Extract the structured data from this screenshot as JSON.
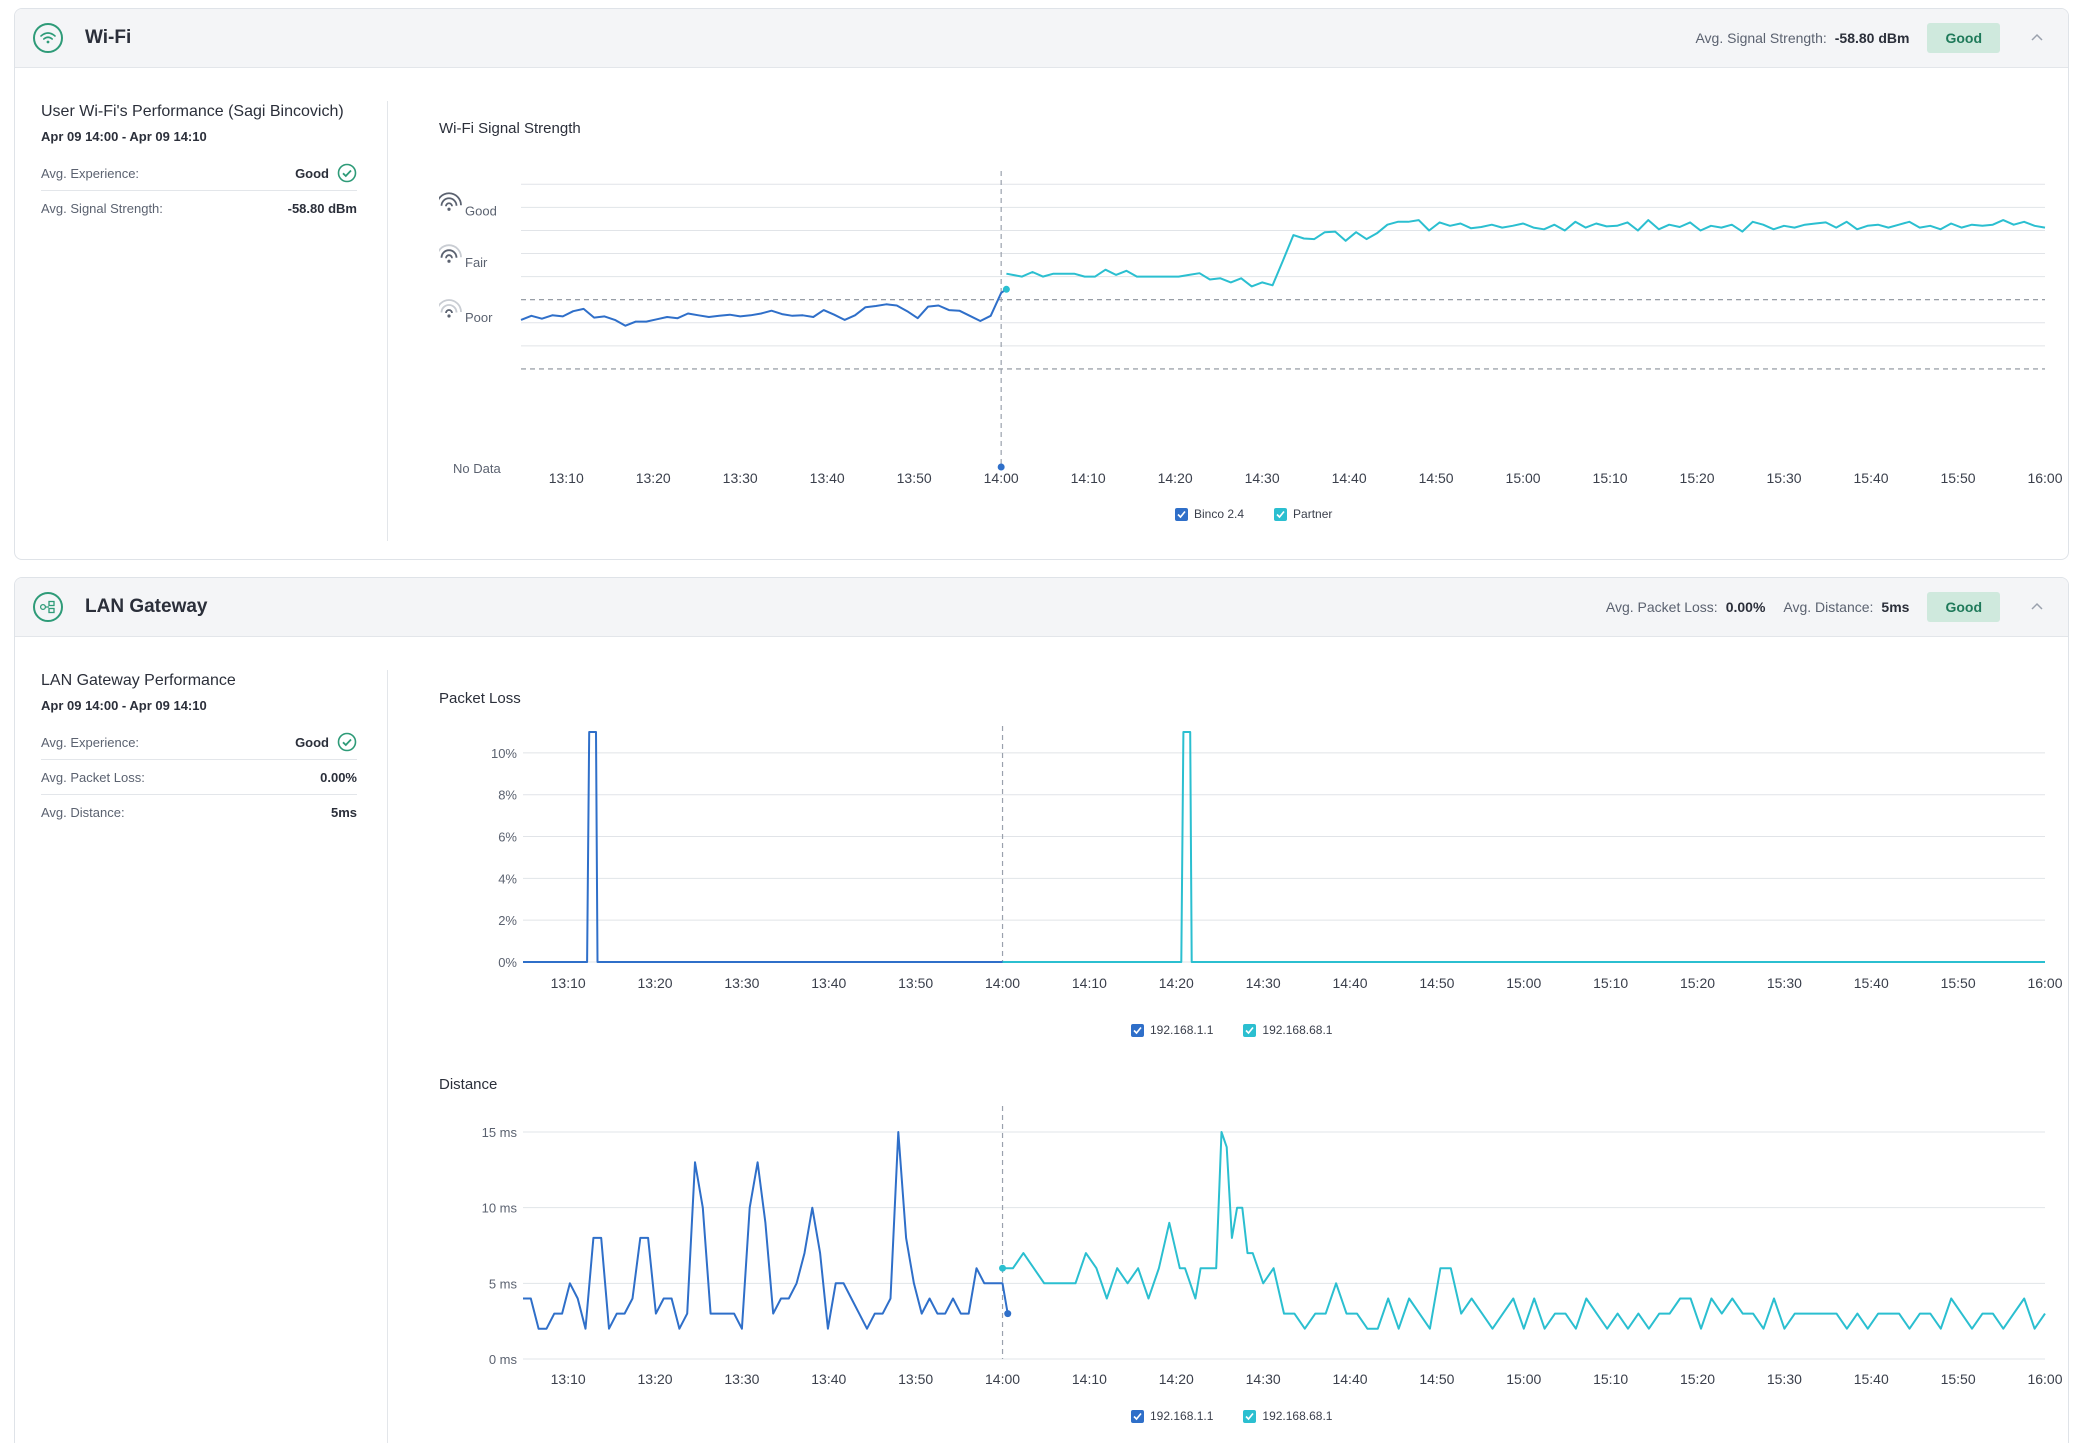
{
  "wifi": {
    "title": "Wi-Fi",
    "header_stat_label": "Avg. Signal Strength:",
    "header_stat_value": "-58.80 dBm",
    "badge": "Good",
    "summary": {
      "title": "User Wi-Fi's Performance (Sagi Bincovich)",
      "range": "Apr 09 14:00 - Apr 09 14:10",
      "rows": [
        {
          "label": "Avg. Experience:",
          "value": "Good"
        },
        {
          "label": "Avg. Signal Strength:",
          "value": "-58.80 dBm"
        }
      ]
    }
  },
  "lan": {
    "title": "LAN Gateway",
    "header_stats": [
      {
        "label": "Avg. Packet Loss:",
        "value": "0.00%"
      },
      {
        "label": "Avg. Distance:",
        "value": "5ms"
      }
    ],
    "badge": "Good",
    "summary": {
      "title": "LAN Gateway Performance",
      "range": "Apr 09 14:00 - Apr 09 14:10",
      "rows": [
        {
          "label": "Avg. Experience:",
          "value": "Good"
        },
        {
          "label": "Avg. Packet Loss:",
          "value": "0.00%"
        },
        {
          "label": "Avg. Distance:",
          "value": "5ms"
        }
      ]
    }
  },
  "colors": {
    "series1": "#2f6fc9",
    "series2": "#2bbfd0",
    "good": "#2e9b78"
  },
  "time_labels": [
    "13:10",
    "13:20",
    "13:30",
    "13:40",
    "13:50",
    "14:00",
    "14:10",
    "14:20",
    "14:30",
    "14:40",
    "14:50",
    "15:00",
    "15:10",
    "15:20",
    "15:30",
    "15:40",
    "15:50",
    "16:00"
  ],
  "chart_data": [
    {
      "type": "line",
      "title": "Wi-Fi Signal Strength",
      "x_labels": [
        "13:10",
        "13:20",
        "13:30",
        "13:40",
        "13:50",
        "14:00",
        "14:10",
        "14:20",
        "14:30",
        "14:40",
        "14:50",
        "15:00",
        "15:10",
        "15:20",
        "15:30",
        "15:40",
        "15:50",
        "16:00"
      ],
      "y_labels": [
        "Good",
        "Fair",
        "Poor",
        "No Data"
      ],
      "xlim": [
        13.08,
        16.0
      ],
      "ylim": [
        0,
        5.2
      ],
      "marker_time": "14:00",
      "legend": [
        "Binco 2.4",
        "Partner"
      ],
      "series": [
        {
          "name": "Partner",
          "x": [
            13.08,
            13.1,
            13.12,
            13.14,
            13.16,
            13.18,
            13.2,
            13.22,
            13.24,
            13.26,
            13.28,
            13.3,
            13.32,
            13.34,
            13.36,
            13.38,
            13.4,
            13.42,
            13.44,
            13.46,
            13.48,
            13.5,
            13.52,
            13.54,
            13.56,
            13.58,
            13.6,
            13.62,
            13.64,
            13.66,
            13.68,
            13.7,
            13.72,
            13.74,
            13.76,
            13.78,
            13.8,
            13.82,
            13.84,
            13.86,
            13.88,
            13.9,
            13.92,
            13.94,
            13.96,
            13.98,
            14.0,
            14.01
          ],
          "values": [
            2.55,
            2.62,
            2.57,
            2.63,
            2.61,
            2.7,
            2.74,
            2.59,
            2.61,
            2.55,
            2.45,
            2.52,
            2.52,
            2.56,
            2.6,
            2.58,
            2.66,
            2.63,
            2.6,
            2.62,
            2.64,
            2.61,
            2.63,
            2.66,
            2.71,
            2.65,
            2.62,
            2.63,
            2.6,
            2.72,
            2.64,
            2.55,
            2.63,
            2.77,
            2.79,
            2.82,
            2.8,
            2.7,
            2.58,
            2.78,
            2.8,
            2.72,
            2.71,
            2.62,
            2.53,
            2.62,
            3.02,
            3.08
          ]
        },
        {
          "name": "Binco 2.4",
          "x": [
            14.01,
            14.04,
            14.06,
            14.08,
            14.1,
            14.12,
            14.14,
            14.16,
            14.18,
            14.2,
            14.22,
            14.24,
            14.26,
            14.28,
            14.3,
            14.32,
            14.34,
            14.36,
            14.38,
            14.4,
            14.42,
            14.44,
            14.46,
            14.48,
            14.5,
            14.52,
            14.54,
            14.56,
            14.58,
            14.6,
            14.62,
            14.64,
            14.66,
            14.68,
            14.7,
            14.72,
            14.74,
            14.76,
            14.78,
            14.8,
            14.82,
            14.84,
            14.86,
            14.88,
            14.9,
            14.92,
            14.94,
            14.96,
            14.98,
            15.0,
            15.02,
            15.04,
            15.06,
            15.08,
            15.1,
            15.12,
            15.14,
            15.16,
            15.18,
            15.2,
            15.22,
            15.24,
            15.26,
            15.28,
            15.3,
            15.32,
            15.34,
            15.36,
            15.38,
            15.4,
            15.42,
            15.44,
            15.46,
            15.48,
            15.5,
            15.52,
            15.54,
            15.56,
            15.58,
            15.6,
            15.62,
            15.64,
            15.66,
            15.68,
            15.7,
            15.72,
            15.74,
            15.76,
            15.78,
            15.8,
            15.82,
            15.84,
            15.86,
            15.88,
            15.9,
            15.92,
            15.94,
            15.96,
            15.98,
            16.0
          ],
          "values": [
            3.35,
            3.3,
            3.38,
            3.3,
            3.35,
            3.35,
            3.35,
            3.3,
            3.3,
            3.42,
            3.33,
            3.4,
            3.3,
            3.3,
            3.3,
            3.3,
            3.3,
            3.33,
            3.36,
            3.25,
            3.27,
            3.2,
            3.27,
            3.13,
            3.2,
            3.15,
            3.58,
            4.02,
            3.96,
            3.95,
            4.07,
            4.08,
            3.92,
            4.07,
            3.95,
            4.05,
            4.2,
            4.25,
            4.25,
            4.28,
            4.1,
            4.24,
            4.18,
            4.22,
            4.14,
            4.16,
            4.2,
            4.15,
            4.18,
            4.22,
            4.15,
            4.12,
            4.2,
            4.1,
            4.25,
            4.15,
            4.22,
            4.17,
            4.18,
            4.24,
            4.1,
            4.28,
            4.12,
            4.2,
            4.16,
            4.24,
            4.1,
            4.18,
            4.15,
            4.2,
            4.08,
            4.25,
            4.2,
            4.12,
            4.18,
            4.15,
            4.2,
            4.22,
            4.24,
            4.15,
            4.25,
            4.12,
            4.18,
            4.2,
            4.15,
            4.2,
            4.25,
            4.15,
            4.18,
            4.12,
            4.22,
            4.15,
            4.2,
            4.18,
            4.2,
            4.28,
            4.2,
            4.25,
            4.18,
            4.15
          ]
        }
      ]
    },
    {
      "type": "line",
      "title": "Packet Loss",
      "x_labels": [
        "13:10",
        "13:20",
        "13:30",
        "13:40",
        "13:50",
        "14:00",
        "14:10",
        "14:20",
        "14:30",
        "14:40",
        "14:50",
        "15:00",
        "15:10",
        "15:20",
        "15:30",
        "15:40",
        "15:50",
        "16:00"
      ],
      "y_labels": [
        "10%",
        "8%",
        "6%",
        "4%",
        "2%",
        "0%"
      ],
      "y_ticks": [
        10,
        8,
        6,
        4,
        2,
        0
      ],
      "xlim": [
        13.08,
        16.0
      ],
      "ylim": [
        0,
        11
      ],
      "marker_time": "14:00",
      "legend": [
        "192.168.1.1",
        "192.168.68.1"
      ],
      "series": [
        {
          "name": "192.168.1.1",
          "x": [
            13.08,
            13.203,
            13.207,
            13.22,
            13.223,
            14.0
          ],
          "values": [
            0,
            0,
            11,
            11,
            0,
            0
          ]
        },
        {
          "name": "192.168.68.1",
          "x": [
            14.0,
            14.343,
            14.347,
            14.36,
            14.363,
            16.0
          ],
          "values": [
            0,
            0,
            11,
            11,
            0,
            0
          ]
        }
      ]
    },
    {
      "type": "line",
      "title": "Distance",
      "x_labels": [
        "13:10",
        "13:20",
        "13:30",
        "13:40",
        "13:50",
        "14:00",
        "14:10",
        "14:20",
        "14:30",
        "14:40",
        "14:50",
        "15:00",
        "15:10",
        "15:20",
        "15:30",
        "15:40",
        "15:50",
        "16:00"
      ],
      "y_labels": [
        "15 ms",
        "10 ms",
        "5 ms",
        "0 ms"
      ],
      "y_ticks": [
        15,
        10,
        5,
        0
      ],
      "xlim": [
        13.08,
        16.0
      ],
      "ylim": [
        0,
        15
      ],
      "marker_time": "14:00",
      "legend": [
        "192.168.1.1",
        "192.168.68.1"
      ],
      "series": [
        {
          "name": "192.168.1.1",
          "x": [
            13.08,
            13.095,
            13.11,
            13.125,
            13.14,
            13.155,
            13.17,
            13.185,
            13.2,
            13.215,
            13.23,
            13.245,
            13.26,
            13.275,
            13.29,
            13.305,
            13.32,
            13.335,
            13.35,
            13.365,
            13.38,
            13.395,
            13.41,
            13.425,
            13.44,
            13.455,
            13.47,
            13.485,
            13.5,
            13.515,
            13.53,
            13.545,
            13.56,
            13.575,
            13.59,
            13.605,
            13.62,
            13.635,
            13.65,
            13.665,
            13.68,
            13.695,
            13.71,
            13.725,
            13.74,
            13.755,
            13.77,
            13.785,
            13.8,
            13.815,
            13.83,
            13.845,
            13.86,
            13.875,
            13.89,
            13.905,
            13.92,
            13.935,
            13.95,
            13.965,
            13.98,
            14.0,
            14.01
          ],
          "values": [
            4,
            4,
            2,
            2,
            3,
            3,
            5,
            4,
            2,
            8,
            8,
            2,
            3,
            3,
            4,
            8,
            8,
            3,
            4,
            4,
            2,
            3,
            13,
            10,
            3,
            3,
            3,
            3,
            2,
            10,
            13,
            9,
            3,
            4,
            4,
            5,
            7,
            10,
            7,
            2,
            5,
            5,
            4,
            3,
            2,
            3,
            3,
            4,
            15,
            8,
            5,
            3,
            4,
            3,
            3,
            4,
            3,
            3,
            6,
            5,
            5,
            5,
            3
          ]
        },
        {
          "name": "192.168.68.1",
          "x": [
            14.0,
            14.02,
            14.04,
            14.06,
            14.08,
            14.1,
            14.12,
            14.14,
            14.16,
            14.18,
            14.2,
            14.22,
            14.24,
            14.26,
            14.28,
            14.3,
            14.32,
            14.34,
            14.35,
            14.36,
            14.37,
            14.38,
            14.39,
            14.4,
            14.41,
            14.42,
            14.43,
            14.44,
            14.45,
            14.46,
            14.47,
            14.48,
            14.5,
            14.52,
            14.54,
            14.56,
            14.58,
            14.6,
            14.62,
            14.64,
            14.66,
            14.68,
            14.7,
            14.72,
            14.74,
            14.76,
            14.78,
            14.8,
            14.82,
            14.84,
            14.86,
            14.88,
            14.9,
            14.92,
            14.94,
            14.96,
            14.98,
            15.0,
            15.02,
            15.04,
            15.06,
            15.08,
            15.1,
            15.12,
            15.14,
            15.16,
            15.18,
            15.2,
            15.22,
            15.24,
            15.26,
            15.28,
            15.3,
            15.32,
            15.34,
            15.36,
            15.38,
            15.4,
            15.42,
            15.44,
            15.46,
            15.48,
            15.5,
            15.52,
            15.54,
            15.56,
            15.58,
            15.6,
            15.62,
            15.64,
            15.66,
            15.68,
            15.7,
            15.72,
            15.74,
            15.76,
            15.78,
            15.8,
            15.82,
            15.84,
            15.86,
            15.88,
            15.9,
            15.92,
            15.94,
            15.96,
            15.98,
            16.0
          ],
          "values": [
            6,
            6,
            7,
            6,
            5,
            5,
            5,
            5,
            7,
            6,
            4,
            6,
            5,
            6,
            4,
            6,
            9,
            6,
            6,
            5,
            4,
            6,
            6,
            6,
            6,
            15,
            14,
            8,
            10,
            10,
            7,
            7,
            5,
            6,
            3,
            3,
            2,
            3,
            3,
            5,
            3,
            3,
            2,
            2,
            4,
            2,
            4,
            3,
            2,
            6,
            6,
            3,
            4,
            3,
            2,
            3,
            4,
            2,
            4,
            2,
            3,
            3,
            2,
            4,
            3,
            2,
            3,
            2,
            3,
            2,
            3,
            3,
            4,
            4,
            2,
            4,
            3,
            4,
            3,
            3,
            2,
            4,
            2,
            3,
            3,
            3,
            3,
            3,
            2,
            3,
            2,
            3,
            3,
            3,
            2,
            3,
            3,
            2,
            4,
            3,
            2,
            3,
            3,
            2,
            3,
            4,
            2,
            3
          ]
        }
      ]
    }
  ]
}
